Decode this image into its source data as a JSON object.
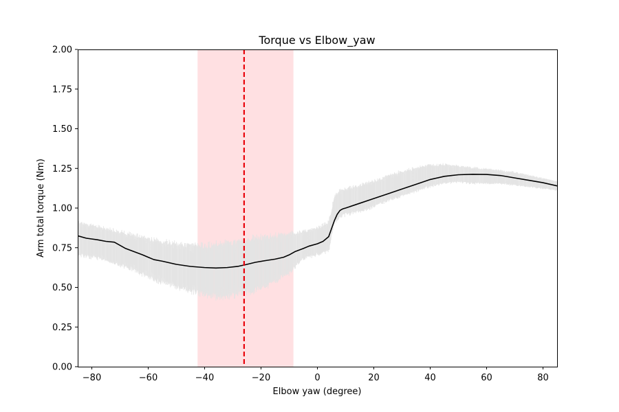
{
  "chart_data": {
    "type": "line",
    "title": "Torque vs Elbow_yaw",
    "xlabel": "Elbow yaw (degree)",
    "ylabel": "Arm total torque (Nm)",
    "xlim": [
      -85,
      85
    ],
    "ylim": [
      0,
      2
    ],
    "xticks": [
      -80,
      -60,
      -40,
      -20,
      0,
      20,
      40,
      60,
      80
    ],
    "yticks": [
      0,
      0.25,
      0.5,
      0.75,
      1.0,
      1.25,
      1.5,
      1.75,
      2.0
    ],
    "xtick_labels": [
      "−80",
      "−60",
      "−40",
      "−20",
      "0",
      "20",
      "40",
      "60",
      "80"
    ],
    "ytick_labels": [
      "0.00",
      "0.25",
      "0.50",
      "0.75",
      "1.00",
      "1.25",
      "1.50",
      "1.75",
      "2.00"
    ],
    "grid": false,
    "colors": {
      "mean_line": "#000000",
      "raw_band": "#e3e3e3",
      "highlight_span": "#ffe0e2",
      "vline": "#e8000b"
    },
    "series": [
      {
        "style": "smoothed-mean",
        "x": [
          -85,
          -82,
          -78,
          -75,
          -72,
          -70,
          -68,
          -65,
          -62,
          -60,
          -58,
          -55,
          -50,
          -45,
          -40,
          -36,
          -32,
          -28,
          -25,
          -22,
          -18,
          -15,
          -12,
          -10,
          -8,
          -5,
          -3,
          0,
          2,
          4,
          5,
          6,
          7,
          8,
          9,
          10,
          15,
          20,
          25,
          30,
          35,
          40,
          45,
          50,
          55,
          60,
          65,
          70,
          75,
          80,
          85
        ],
        "y": [
          0.825,
          0.81,
          0.8,
          0.79,
          0.785,
          0.765,
          0.745,
          0.725,
          0.705,
          0.69,
          0.675,
          0.665,
          0.645,
          0.632,
          0.625,
          0.622,
          0.625,
          0.633,
          0.645,
          0.658,
          0.67,
          0.678,
          0.69,
          0.705,
          0.725,
          0.745,
          0.76,
          0.775,
          0.79,
          0.82,
          0.87,
          0.92,
          0.96,
          0.985,
          0.995,
          1.0,
          1.03,
          1.06,
          1.09,
          1.12,
          1.15,
          1.18,
          1.2,
          1.21,
          1.213,
          1.212,
          1.205,
          1.19,
          1.175,
          1.16,
          1.14
        ]
      },
      {
        "style": "raw-band",
        "x": [
          -85,
          -80,
          -75,
          -70,
          -65,
          -60,
          -55,
          -50,
          -45,
          -40,
          -35,
          -30,
          -25,
          -20,
          -15,
          -10,
          -5,
          0,
          4,
          6,
          8,
          10,
          15,
          20,
          25,
          30,
          35,
          40,
          45,
          50,
          55,
          60,
          65,
          70,
          75,
          80,
          85
        ],
        "upper": [
          0.92,
          0.9,
          0.88,
          0.86,
          0.84,
          0.82,
          0.8,
          0.79,
          0.78,
          0.78,
          0.79,
          0.8,
          0.82,
          0.83,
          0.84,
          0.85,
          0.86,
          0.88,
          0.92,
          1.08,
          1.12,
          1.13,
          1.15,
          1.18,
          1.21,
          1.24,
          1.26,
          1.28,
          1.28,
          1.27,
          1.26,
          1.25,
          1.24,
          1.23,
          1.21,
          1.19,
          1.17
        ],
        "lower": [
          0.7,
          0.68,
          0.66,
          0.63,
          0.6,
          0.55,
          0.52,
          0.49,
          0.46,
          0.44,
          0.42,
          0.43,
          0.45,
          0.48,
          0.52,
          0.58,
          0.67,
          0.7,
          0.72,
          0.9,
          0.93,
          0.95,
          0.97,
          1.0,
          1.04,
          1.07,
          1.1,
          1.13,
          1.15,
          1.16,
          1.15,
          1.15,
          1.15,
          1.14,
          1.13,
          1.12,
          1.11
        ]
      }
    ],
    "shaded_span": {
      "x_from": -42.5,
      "x_to": -8.5
    },
    "vline": {
      "x": -26,
      "style": "dashed"
    }
  }
}
